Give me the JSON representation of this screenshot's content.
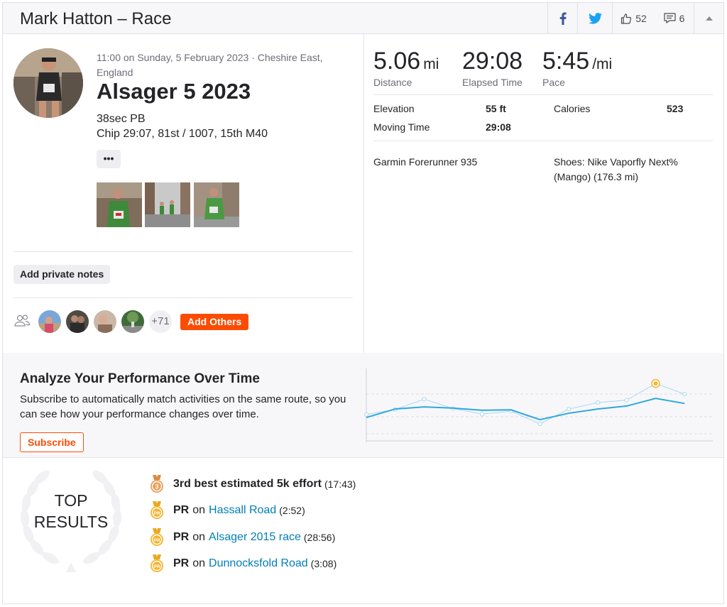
{
  "header": {
    "title": "Mark Hatton – Race",
    "kudos_count": "52",
    "comments_count": "6"
  },
  "activity": {
    "datetime_location": "11:00 on Sunday, 5 February 2023 · Cheshire East, England",
    "title": "Alsager 5 2023",
    "description_line1": "38sec PB",
    "description_line2": "Chip 29:07, 81st / 1007, 15th M40",
    "more_label": "•••"
  },
  "actions": {
    "private_notes_label": "Add private notes",
    "others_count": "+71",
    "add_others_label": "Add Others"
  },
  "stats": {
    "distance": {
      "value": "5.06",
      "unit": "mi",
      "label": "Distance"
    },
    "elapsed": {
      "value": "29:08",
      "label": "Elapsed Time"
    },
    "pace": {
      "value": "5:45",
      "unit": "/mi",
      "label": "Pace"
    }
  },
  "details": {
    "elevation_label": "Elevation",
    "elevation_value": "55 ft",
    "calories_label": "Calories",
    "calories_value": "523",
    "moving_time_label": "Moving Time",
    "moving_time_value": "29:08",
    "device": "Garmin Forerunner 935",
    "shoes": "Shoes: Nike Vaporfly Next% (Mango) (176.3 mi)"
  },
  "analyze": {
    "heading": "Analyze Your Performance Over Time",
    "text": "Subscribe to automatically match activities on the same route, so you can see how your performance changes over time.",
    "subscribe_label": "Subscribe"
  },
  "chart_data": {
    "type": "line",
    "title": "",
    "xlabel": "",
    "ylabel": "",
    "grid": true,
    "series": [
      {
        "values": [
          0.35,
          0.55,
          0.6,
          0.57,
          0.52,
          0.53,
          0.3,
          0.45,
          0.55,
          0.62,
          0.8,
          0.68
        ]
      },
      {
        "values": [
          0.42,
          0.54,
          0.78,
          0.56,
          0.43,
          0.5,
          0.2,
          0.55,
          0.7,
          0.76,
          1.15,
          0.9
        ]
      }
    ],
    "highlight_index": 10
  },
  "top_results": {
    "heading_line1": "TOP",
    "heading_line2": "RESULTS",
    "items": [
      {
        "bold": "3rd best estimated 5k effort",
        "link": "",
        "time": "(17:43)",
        "medal": "bronze"
      },
      {
        "bold": "PR",
        "sep": "on",
        "link": "Hassall Road",
        "time": "(2:52)",
        "medal": "pr"
      },
      {
        "bold": "PR",
        "sep": "on",
        "link": "Alsager 2015 race",
        "time": "(28:56)",
        "medal": "pr"
      },
      {
        "bold": "PR",
        "sep": "on",
        "link": "Dunnocksfold Road",
        "time": "(3:08)",
        "medal": "pr"
      }
    ]
  },
  "colors": {
    "accent": "#fc4c02",
    "link": "#007fb6",
    "chart_line": "#2fa8dc",
    "medal_gold": "#f5b530"
  }
}
